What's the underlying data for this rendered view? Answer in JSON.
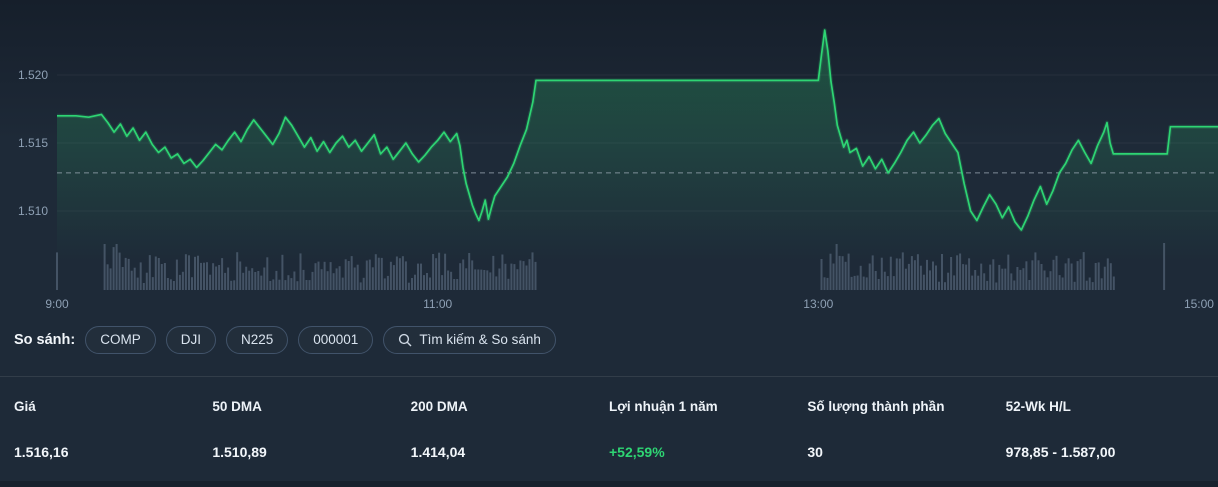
{
  "colors": {
    "background": "#1e2a38",
    "line": "#2ed573",
    "positive": "#2ed573",
    "volume": "#5d7083",
    "axis_text": "#8ea0b4",
    "dashed": "#a8b4c0",
    "pill_border": "#41536a"
  },
  "chart_data": {
    "type": "line",
    "title": "Intraday index price",
    "x_unit": "minutes from 9:00",
    "x_domain": [
      0,
      366
    ],
    "ylim": [
      1.5075,
      1.5245
    ],
    "grid": true,
    "y_ticks": [
      {
        "label": "1.520",
        "value": 1.52
      },
      {
        "label": "1.515",
        "value": 1.515
      },
      {
        "label": "1.510",
        "value": 1.51
      }
    ],
    "x_ticks": [
      {
        "label": "9:00",
        "min": 0
      },
      {
        "label": "11:00",
        "min": 120
      },
      {
        "label": "13:00",
        "min": 240
      },
      {
        "label": "15:00",
        "min": 360
      }
    ],
    "prev_close": 1.5128,
    "series": [
      {
        "name": "price",
        "points": [
          [
            0,
            1.517
          ],
          [
            6,
            1.517
          ],
          [
            10,
            1.5169
          ],
          [
            14,
            1.5171
          ],
          [
            16,
            1.5165
          ],
          [
            18,
            1.5158
          ],
          [
            20,
            1.5164
          ],
          [
            22,
            1.5155
          ],
          [
            24,
            1.5161
          ],
          [
            26,
            1.5152
          ],
          [
            28,
            1.5158
          ],
          [
            30,
            1.5149
          ],
          [
            32,
            1.5143
          ],
          [
            34,
            1.5147
          ],
          [
            36,
            1.5139
          ],
          [
            38,
            1.5142
          ],
          [
            40,
            1.5135
          ],
          [
            42,
            1.5138
          ],
          [
            44,
            1.5132
          ],
          [
            46,
            1.5137
          ],
          [
            48,
            1.5143
          ],
          [
            50,
            1.5149
          ],
          [
            52,
            1.5145
          ],
          [
            54,
            1.5152
          ],
          [
            56,
            1.5158
          ],
          [
            58,
            1.5151
          ],
          [
            60,
            1.516
          ],
          [
            62,
            1.5167
          ],
          [
            64,
            1.5161
          ],
          [
            66,
            1.5155
          ],
          [
            68,
            1.5149
          ],
          [
            70,
            1.5157
          ],
          [
            72,
            1.5169
          ],
          [
            74,
            1.5163
          ],
          [
            76,
            1.5155
          ],
          [
            78,
            1.5147
          ],
          [
            80,
            1.5154
          ],
          [
            82,
            1.5144
          ],
          [
            84,
            1.5151
          ],
          [
            86,
            1.5143
          ],
          [
            88,
            1.515
          ],
          [
            90,
            1.5155
          ],
          [
            92,
            1.5147
          ],
          [
            94,
            1.5152
          ],
          [
            96,
            1.5144
          ],
          [
            98,
            1.515
          ],
          [
            100,
            1.5156
          ],
          [
            102,
            1.5142
          ],
          [
            104,
            1.5147
          ],
          [
            106,
            1.5138
          ],
          [
            108,
            1.5144
          ],
          [
            110,
            1.515
          ],
          [
            112,
            1.5142
          ],
          [
            114,
            1.5136
          ],
          [
            116,
            1.5141
          ],
          [
            118,
            1.5147
          ],
          [
            120,
            1.5152
          ],
          [
            122,
            1.5158
          ],
          [
            124,
            1.5151
          ],
          [
            126,
            1.5157
          ],
          [
            127,
            1.5148
          ],
          [
            128,
            1.5132
          ],
          [
            129,
            1.512
          ],
          [
            130,
            1.5112
          ],
          [
            131,
            1.5104
          ],
          [
            132,
            1.5098
          ],
          [
            133,
            1.5093
          ],
          [
            134,
            1.51
          ],
          [
            135,
            1.5108
          ],
          [
            136,
            1.5094
          ],
          [
            137,
            1.5103
          ],
          [
            138,
            1.5111
          ],
          [
            140,
            1.5118
          ],
          [
            142,
            1.5125
          ],
          [
            144,
            1.5135
          ],
          [
            146,
            1.5148
          ],
          [
            148,
            1.516
          ],
          [
            150,
            1.518
          ],
          [
            151,
            1.5196
          ],
          [
            240,
            1.5196
          ],
          [
            241,
            1.5215
          ],
          [
            242,
            1.5233
          ],
          [
            243,
            1.5218
          ],
          [
            244,
            1.5195
          ],
          [
            245,
            1.518
          ],
          [
            246,
            1.5163
          ],
          [
            247,
            1.5155
          ],
          [
            248,
            1.5147
          ],
          [
            249,
            1.5152
          ],
          [
            250,
            1.5143
          ],
          [
            252,
            1.5146
          ],
          [
            254,
            1.5133
          ],
          [
            256,
            1.514
          ],
          [
            258,
            1.5131
          ],
          [
            260,
            1.5138
          ],
          [
            262,
            1.5128
          ],
          [
            264,
            1.5135
          ],
          [
            266,
            1.5143
          ],
          [
            268,
            1.5152
          ],
          [
            270,
            1.5158
          ],
          [
            272,
            1.515
          ],
          [
            274,
            1.5156
          ],
          [
            276,
            1.5163
          ],
          [
            278,
            1.5168
          ],
          [
            280,
            1.5157
          ],
          [
            282,
            1.515
          ],
          [
            284,
            1.5143
          ],
          [
            286,
            1.512
          ],
          [
            288,
            1.51
          ],
          [
            290,
            1.5093
          ],
          [
            292,
            1.5103
          ],
          [
            294,
            1.5112
          ],
          [
            296,
            1.5105
          ],
          [
            298,
            1.5095
          ],
          [
            300,
            1.5103
          ],
          [
            302,
            1.5092
          ],
          [
            304,
            1.5086
          ],
          [
            306,
            1.5096
          ],
          [
            308,
            1.5108
          ],
          [
            310,
            1.5118
          ],
          [
            312,
            1.5105
          ],
          [
            314,
            1.5115
          ],
          [
            316,
            1.5128
          ],
          [
            318,
            1.5135
          ],
          [
            320,
            1.5145
          ],
          [
            322,
            1.5152
          ],
          [
            324,
            1.5143
          ],
          [
            326,
            1.5135
          ],
          [
            328,
            1.5148
          ],
          [
            330,
            1.5158
          ],
          [
            331,
            1.5165
          ],
          [
            332,
            1.515
          ],
          [
            333,
            1.5142
          ],
          [
            348,
            1.5142
          ],
          [
            350,
            1.5142
          ],
          [
            351,
            1.5162
          ],
          [
            366,
            1.5162
          ]
        ]
      }
    ],
    "volume": {
      "sessions": [
        [
          15,
          151
        ],
        [
          241,
          334
        ]
      ],
      "singles": [
        [
          0,
          0.8
        ],
        [
          349,
          1.0
        ]
      ]
    },
    "legend": false
  },
  "compare": {
    "label": "So sánh:",
    "tickers": [
      "COMP",
      "DJI",
      "N225",
      "000001"
    ],
    "search_label": "Tìm kiếm & So sánh"
  },
  "stats": {
    "columns": [
      {
        "header": "Giá",
        "value": "1.516,16"
      },
      {
        "header": "50 DMA",
        "value": "1.510,89"
      },
      {
        "header": "200 DMA",
        "value": "1.414,04"
      },
      {
        "header": "Lợi nhuận 1 năm",
        "value": "+52,59%"
      },
      {
        "header": "Số lượng thành phần",
        "value": "30"
      },
      {
        "header": "52-Wk H/L",
        "value": "978,85 - 1.587,00"
      }
    ]
  }
}
